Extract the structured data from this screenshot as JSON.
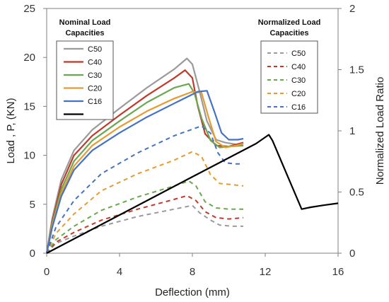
{
  "chart_data": {
    "type": "line",
    "xlabel": "Deflection (mm)",
    "ylabel": "Load , P, (KN)",
    "y2label": "Normalized Load Ratio",
    "xlim": [
      0,
      16
    ],
    "ylim": [
      0,
      25
    ],
    "y2lim": [
      0,
      2
    ],
    "xticks": [
      "0",
      "4",
      "8",
      "12",
      "16"
    ],
    "yticks": [
      "0",
      "5",
      "10",
      "15",
      "20",
      "25"
    ],
    "y2ticks": [
      "0",
      "0.5",
      "1",
      "1.5",
      "2"
    ],
    "legend_nominal_title_line1": "Nominal Load",
    "legend_nominal_title_line2": "Capacities",
    "legend_normalized_title_line1": "Normalized Load",
    "legend_normalized_title_line2": "Capacities",
    "series": [
      {
        "name": "C50",
        "group": "nominal",
        "axis": "left",
        "color": "#9a9a9a",
        "dash": false,
        "points": [
          [
            0,
            0
          ],
          [
            0.3,
            3.5
          ],
          [
            0.8,
            7.5
          ],
          [
            1.5,
            10.5
          ],
          [
            2.5,
            12.6
          ],
          [
            4,
            14.8
          ],
          [
            5.5,
            16.9
          ],
          [
            7,
            18.8
          ],
          [
            7.7,
            19.9
          ],
          [
            8.0,
            19.3
          ],
          [
            8.4,
            16.5
          ],
          [
            8.8,
            13.5
          ],
          [
            9.3,
            11.6
          ],
          [
            9.8,
            11.3
          ],
          [
            10.8,
            11.0
          ]
        ]
      },
      {
        "name": "C40",
        "group": "nominal",
        "axis": "left",
        "color": "#c0392b",
        "dash": false,
        "points": [
          [
            0,
            0
          ],
          [
            0.3,
            3.2
          ],
          [
            0.8,
            7.0
          ],
          [
            1.5,
            10.0
          ],
          [
            2.5,
            12.0
          ],
          [
            4,
            14.1
          ],
          [
            5.5,
            16.1
          ],
          [
            7,
            17.9
          ],
          [
            7.6,
            18.7
          ],
          [
            8.0,
            17.9
          ],
          [
            8.3,
            15.0
          ],
          [
            8.7,
            12.2
          ],
          [
            9.3,
            11.0
          ],
          [
            10.0,
            10.9
          ],
          [
            10.8,
            11.3
          ]
        ]
      },
      {
        "name": "C30",
        "group": "nominal",
        "axis": "left",
        "color": "#6aa84f",
        "dash": false,
        "points": [
          [
            0,
            0
          ],
          [
            0.3,
            3.0
          ],
          [
            0.8,
            6.5
          ],
          [
            1.5,
            9.4
          ],
          [
            2.5,
            11.5
          ],
          [
            4,
            13.5
          ],
          [
            5.5,
            15.4
          ],
          [
            7,
            16.9
          ],
          [
            7.8,
            17.3
          ],
          [
            8.1,
            16.4
          ],
          [
            8.5,
            13.8
          ],
          [
            9.0,
            11.5
          ],
          [
            9.5,
            10.8
          ],
          [
            10.0,
            10.9
          ],
          [
            10.8,
            11.0
          ]
        ]
      },
      {
        "name": "C20",
        "group": "nominal",
        "axis": "left",
        "color": "#e69b30",
        "dash": false,
        "points": [
          [
            0,
            0
          ],
          [
            0.3,
            2.8
          ],
          [
            0.8,
            6.1
          ],
          [
            1.5,
            8.9
          ],
          [
            2.5,
            11.0
          ],
          [
            4,
            12.9
          ],
          [
            5.5,
            14.5
          ],
          [
            7,
            15.8
          ],
          [
            8.0,
            16.5
          ],
          [
            8.5,
            16.4
          ],
          [
            8.9,
            13.8
          ],
          [
            9.3,
            11.4
          ],
          [
            9.8,
            10.8
          ],
          [
            10.4,
            11.0
          ],
          [
            10.8,
            11.2
          ]
        ]
      },
      {
        "name": "C16",
        "group": "nominal",
        "axis": "left",
        "color": "#4472c4",
        "dash": false,
        "points": [
          [
            0,
            0
          ],
          [
            0.3,
            2.6
          ],
          [
            0.8,
            5.8
          ],
          [
            1.5,
            8.5
          ],
          [
            2.5,
            10.5
          ],
          [
            4,
            12.3
          ],
          [
            5.5,
            13.9
          ],
          [
            7,
            15.3
          ],
          [
            8.3,
            16.5
          ],
          [
            8.8,
            16.6
          ],
          [
            9.2,
            14.5
          ],
          [
            9.6,
            12.3
          ],
          [
            10.0,
            11.6
          ],
          [
            10.5,
            11.6
          ],
          [
            10.8,
            11.7
          ]
        ]
      },
      {
        "name": "C50",
        "group": "normalized",
        "axis": "right",
        "color": "#9a9a9a",
        "dash": true,
        "points": [
          [
            0,
            0
          ],
          [
            0.5,
            0.08
          ],
          [
            1.5,
            0.14
          ],
          [
            3,
            0.22
          ],
          [
            5,
            0.3
          ],
          [
            7,
            0.36
          ],
          [
            8.0,
            0.39
          ],
          [
            8.4,
            0.33
          ],
          [
            9.0,
            0.27
          ],
          [
            9.5,
            0.23
          ],
          [
            10.2,
            0.22
          ],
          [
            10.8,
            0.22
          ]
        ]
      },
      {
        "name": "C40",
        "group": "normalized",
        "axis": "right",
        "color": "#c0392b",
        "dash": true,
        "points": [
          [
            0,
            0
          ],
          [
            0.5,
            0.09
          ],
          [
            1.5,
            0.17
          ],
          [
            3,
            0.27
          ],
          [
            5,
            0.36
          ],
          [
            7,
            0.44
          ],
          [
            7.7,
            0.47
          ],
          [
            8.2,
            0.43
          ],
          [
            8.7,
            0.34
          ],
          [
            9.3,
            0.29
          ],
          [
            10.0,
            0.28
          ],
          [
            10.8,
            0.29
          ]
        ]
      },
      {
        "name": "C30",
        "group": "normalized",
        "axis": "right",
        "color": "#6aa84f",
        "dash": true,
        "points": [
          [
            0,
            0
          ],
          [
            0.5,
            0.11
          ],
          [
            1.5,
            0.22
          ],
          [
            3,
            0.35
          ],
          [
            5,
            0.46
          ],
          [
            7,
            0.55
          ],
          [
            7.8,
            0.59
          ],
          [
            8.2,
            0.55
          ],
          [
            8.7,
            0.42
          ],
          [
            9.3,
            0.37
          ],
          [
            10.0,
            0.36
          ],
          [
            10.8,
            0.36
          ]
        ]
      },
      {
        "name": "C20",
        "group": "normalized",
        "axis": "right",
        "color": "#e69b30",
        "dash": true,
        "points": [
          [
            0,
            0
          ],
          [
            0.5,
            0.16
          ],
          [
            1.5,
            0.32
          ],
          [
            3,
            0.51
          ],
          [
            5,
            0.65
          ],
          [
            7,
            0.76
          ],
          [
            8.0,
            0.83
          ],
          [
            8.5,
            0.79
          ],
          [
            9.0,
            0.64
          ],
          [
            9.5,
            0.57
          ],
          [
            10.2,
            0.56
          ],
          [
            10.8,
            0.55
          ]
        ]
      },
      {
        "name": "C16",
        "group": "normalized",
        "axis": "right",
        "color": "#4472c4",
        "dash": true,
        "points": [
          [
            0,
            0
          ],
          [
            0.5,
            0.21
          ],
          [
            1.5,
            0.43
          ],
          [
            3,
            0.65
          ],
          [
            5,
            0.82
          ],
          [
            7,
            0.96
          ],
          [
            8.5,
            1.04
          ],
          [
            9.0,
            0.98
          ],
          [
            9.4,
            0.82
          ],
          [
            9.8,
            0.74
          ],
          [
            10.3,
            0.73
          ],
          [
            10.8,
            0.73
          ]
        ]
      },
      {
        "name": "",
        "group": "nominal",
        "axis": "left",
        "color": "#000000",
        "dash": false,
        "points": [
          [
            0,
            0
          ],
          [
            2,
            1.95
          ],
          [
            4,
            3.9
          ],
          [
            6,
            5.85
          ],
          [
            8,
            7.8
          ],
          [
            10,
            9.75
          ],
          [
            11.5,
            11.2
          ],
          [
            12.2,
            12.1
          ],
          [
            12.4,
            11.5
          ],
          [
            13.2,
            8.0
          ],
          [
            14,
            4.5
          ],
          [
            14.5,
            4.7
          ],
          [
            15.2,
            4.9
          ],
          [
            16,
            5.1
          ]
        ]
      }
    ]
  }
}
